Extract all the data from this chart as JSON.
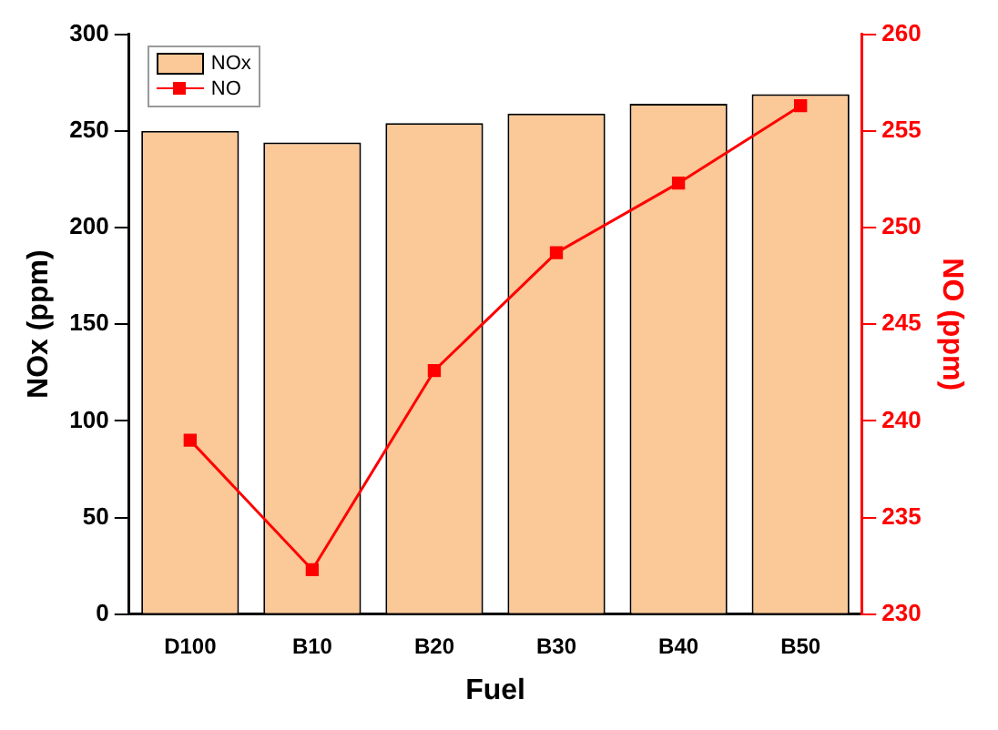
{
  "chart_data": {
    "type": "bar",
    "xlabel": "Fuel",
    "ylabel": "NOx (ppm)",
    "y2label": "NO (ppm)",
    "categories": [
      "D100",
      "B10",
      "B20",
      "B30",
      "B40",
      "B50"
    ],
    "series": [
      {
        "name": "NOx",
        "color": "#fbc897",
        "values": [
          250,
          244,
          254,
          259,
          264,
          269
        ]
      },
      {
        "name": "NO",
        "type": "line",
        "axis": "y2",
        "color": "#ff0000",
        "values": [
          239.0,
          232.3,
          242.6,
          248.7,
          252.3,
          256.3
        ]
      }
    ],
    "ylim": [
      0,
      300
    ],
    "yticks": [
      0,
      50,
      100,
      150,
      200,
      250,
      300
    ],
    "y2lim": [
      230,
      260
    ],
    "y2ticks": [
      230,
      235,
      240,
      245,
      250,
      255,
      260
    ],
    "grid": false,
    "legend": "top left",
    "marker": "square",
    "line_style": "solid"
  }
}
